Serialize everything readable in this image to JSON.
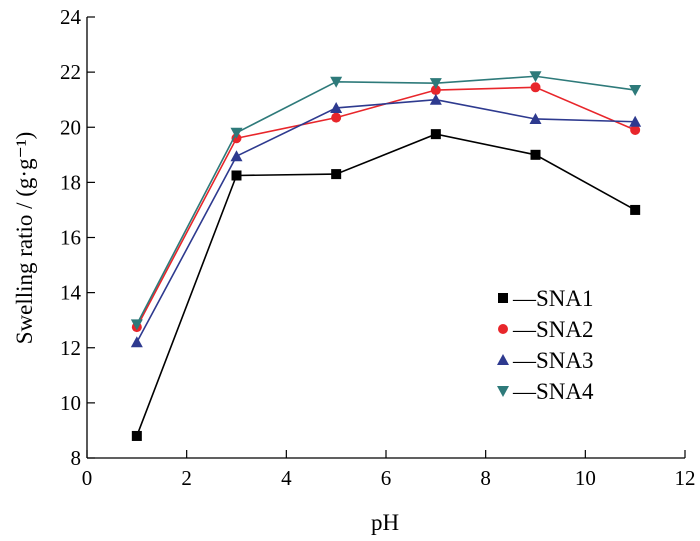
{
  "chart_data": {
    "type": "line",
    "xlabel": "pH",
    "ylabel": "Swelling ratio / (g·g⁻¹)",
    "xlim": [
      0,
      12
    ],
    "ylim": [
      8,
      24
    ],
    "xticks": [
      "0",
      "2",
      "4",
      "6",
      "8",
      "10",
      "12"
    ],
    "yticks": [
      "8",
      "10",
      "12",
      "14",
      "16",
      "18",
      "20",
      "22",
      "24"
    ],
    "grid": false,
    "legend_position": "bottom-right",
    "x": [
      1,
      3,
      5,
      7,
      9,
      11
    ],
    "series": [
      {
        "name": "SNA1",
        "values": [
          8.8,
          18.25,
          18.3,
          19.75,
          19.0,
          17.0
        ],
        "color": "#000000",
        "marker": "square"
      },
      {
        "name": "SNA2",
        "values": [
          12.75,
          19.6,
          20.35,
          21.35,
          21.45,
          19.9
        ],
        "color": "#e8262b",
        "marker": "circle"
      },
      {
        "name": "SNA3",
        "values": [
          12.2,
          18.95,
          20.7,
          21.0,
          20.3,
          20.2
        ],
        "color": "#2e3a8f",
        "marker": "triangle-up"
      },
      {
        "name": "SNA4",
        "values": [
          12.85,
          19.8,
          21.65,
          21.6,
          21.85,
          21.35
        ],
        "color": "#2e7a7a",
        "marker": "triangle-down"
      }
    ],
    "legend_line_glyph": "—"
  }
}
